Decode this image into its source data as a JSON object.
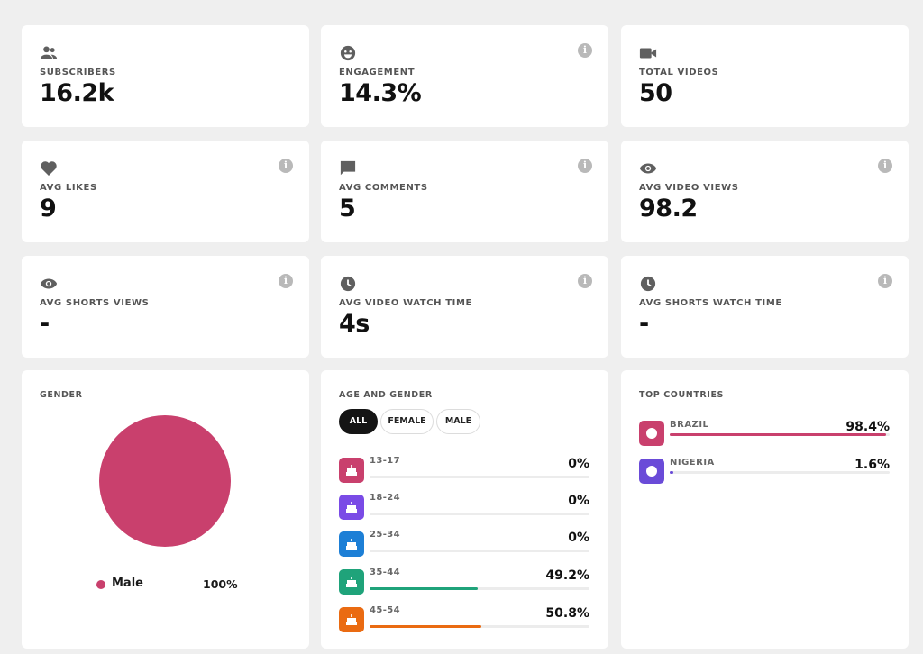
{
  "stats": [
    {
      "label": "SUBSCRIBERS",
      "value": "16.2k",
      "icon": "people-icon",
      "info": false
    },
    {
      "label": "ENGAGEMENT",
      "value": "14.3%",
      "icon": "smiley-icon",
      "info": true
    },
    {
      "label": "TOTAL VIDEOS",
      "value": "50",
      "icon": "video-camera-icon",
      "info": false
    },
    {
      "label": "AVG LIKES",
      "value": "9",
      "icon": "heart-icon",
      "info": true
    },
    {
      "label": "AVG COMMENTS",
      "value": "5",
      "icon": "comment-icon",
      "info": true
    },
    {
      "label": "AVG VIDEO VIEWS",
      "value": "98.2",
      "icon": "eye-icon",
      "info": true
    },
    {
      "label": "AVG SHORTS VIEWS",
      "value": "-",
      "icon": "eye-icon",
      "info": true
    },
    {
      "label": "AVG VIDEO WATCH TIME",
      "value": "4s",
      "icon": "clock-icon",
      "info": true
    },
    {
      "label": "AVG SHORTS WATCH TIME",
      "value": "-",
      "icon": "clock-icon",
      "info": true
    }
  ],
  "info_glyph": "i",
  "gender": {
    "title": "GENDER",
    "slices": [
      {
        "name": "Male",
        "percent": 100,
        "pct_label": "100%",
        "color": "#c9406d"
      }
    ]
  },
  "age_gender": {
    "title": "AGE AND GENDER",
    "filters": [
      "ALL",
      "FEMALE",
      "MALE"
    ],
    "active_filter": "ALL",
    "rows": [
      {
        "label": "13-17",
        "pct_label": "0%",
        "value": 0,
        "color": "#c9406d"
      },
      {
        "label": "18-24",
        "pct_label": "0%",
        "value": 0,
        "color": "#7a4be6"
      },
      {
        "label": "25-34",
        "pct_label": "0%",
        "value": 0,
        "color": "#1d7fd6"
      },
      {
        "label": "35-44",
        "pct_label": "49.2%",
        "value": 49.2,
        "color": "#1fa37a"
      },
      {
        "label": "45-54",
        "pct_label": "50.8%",
        "value": 50.8,
        "color": "#ea6b12"
      }
    ]
  },
  "countries": {
    "title": "TOP COUNTRIES",
    "rows": [
      {
        "label": "BRAZIL",
        "pct_label": "98.4%",
        "value": 98.4,
        "color": "#c9406d"
      },
      {
        "label": "NIGERIA",
        "pct_label": "1.6%",
        "value": 1.6,
        "color": "#6a4bd8"
      }
    ]
  }
}
